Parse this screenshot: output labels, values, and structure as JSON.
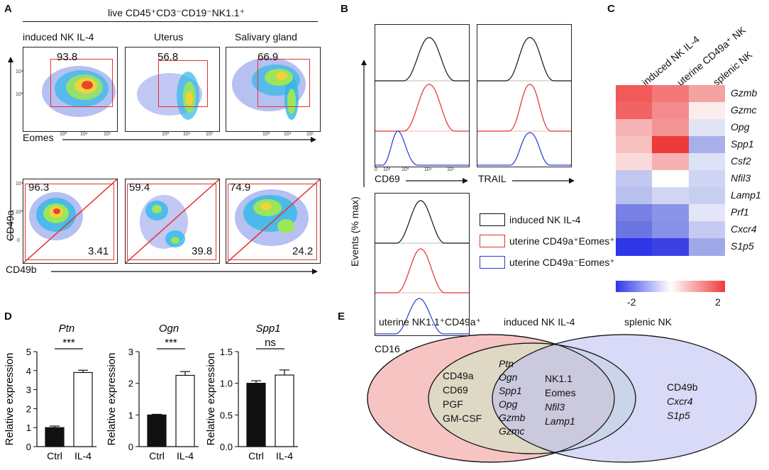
{
  "panels": {
    "A": "A",
    "B": "B",
    "C": "C",
    "D": "D",
    "E": "E"
  },
  "panelA": {
    "header": "live CD45⁺CD3⁻CD19⁻NK1.1⁺",
    "columns": [
      "induced NK IL-4",
      "Uterus",
      "Salivary gland"
    ],
    "top_values": [
      "93.8",
      "56.8",
      "66.9"
    ],
    "bottom_upper_values": [
      "96.3",
      "59.4",
      "74.9"
    ],
    "bottom_lower_values": [
      "3.41",
      "39.8",
      "24.2"
    ],
    "x_label_top": "Eomes",
    "x_label_bottom": "CD49b",
    "y_label": "CD49a",
    "ticks": [
      "10³",
      "10⁴",
      "10⁵",
      "10⁴",
      "10³",
      "0"
    ]
  },
  "panelB": {
    "x_labels": [
      "CD69",
      "TRAIL",
      "CD16"
    ],
    "y_label": "Events (% max)",
    "ticks": [
      "0",
      "10²",
      "10³",
      "10⁴",
      "10⁵"
    ],
    "legend": [
      {
        "label": "induced NK IL-4",
        "color": "#111111"
      },
      {
        "label": "uterine CD49a⁺Eomes⁺",
        "color": "#e03030"
      },
      {
        "label": "uterine CD49a⁻Eomes⁺",
        "color": "#2a3ad0"
      }
    ]
  },
  "panelC": {
    "columns": [
      "induced NK IL-4",
      "uterine CD49a⁺ NK",
      "splenic NK"
    ],
    "genes": [
      "Gzmb",
      "Gzmc",
      "Opg",
      "Spp1",
      "Csf2",
      "Nfil3",
      "Lamp1",
      "Prf1",
      "Cxcr4",
      "S1p5"
    ],
    "scale_min": "-2",
    "scale_max": "2",
    "colors": [
      [
        "#f25a5a",
        "#f47878",
        "#f4a2a2"
      ],
      [
        "#f26464",
        "#f38c8c",
        "#fcecec"
      ],
      [
        "#f7b4b4",
        "#f49494",
        "#e2e4f6"
      ],
      [
        "#f8c0c0",
        "#ef3a3a",
        "#a8b0ec"
      ],
      [
        "#fbdada",
        "#f6b2b2",
        "#dee2f6"
      ],
      [
        "#c2c8f0",
        "#ffffff",
        "#d0d4f4"
      ],
      [
        "#b8c0ee",
        "#d2d6f4",
        "#c8cef2"
      ],
      [
        "#7880e6",
        "#8c94e8",
        "#e4e6f8"
      ],
      [
        "#6c74e2",
        "#8890e8",
        "#c4caf2"
      ],
      [
        "#2e36e8",
        "#3a42e6",
        "#a0a8ea"
      ]
    ]
  },
  "chart_data": [
    {
      "type": "bar",
      "title": "Ptn",
      "categories": [
        "Ctrl",
        "IL-4"
      ],
      "values": [
        1.0,
        3.9
      ],
      "errors": [
        0.08,
        0.12
      ],
      "ylabel": "Relative expression",
      "ylim": [
        0,
        5
      ],
      "yticks": [
        "0",
        "1",
        "2",
        "3",
        "4",
        "5"
      ],
      "significance": "***",
      "bar_colors": [
        "#111111",
        "#ffffff"
      ]
    },
    {
      "type": "bar",
      "title": "Ogn",
      "categories": [
        "Ctrl",
        "IL-4"
      ],
      "values": [
        1.0,
        2.25
      ],
      "errors": [
        0.02,
        0.12
      ],
      "ylabel": "Relative expression",
      "ylim": [
        0,
        3
      ],
      "yticks": [
        "0",
        "1",
        "2",
        "3"
      ],
      "significance": "***",
      "bar_colors": [
        "#111111",
        "#ffffff"
      ]
    },
    {
      "type": "bar",
      "title": "Spp1",
      "categories": [
        "Ctrl",
        "IL-4"
      ],
      "values": [
        1.0,
        1.13
      ],
      "errors": [
        0.04,
        0.08
      ],
      "ylabel": "Relative expression",
      "ylim": [
        0,
        1.5
      ],
      "yticks": [
        "0.0",
        "0.5",
        "1.0",
        "1.5"
      ],
      "significance": "ns",
      "bar_colors": [
        "#111111",
        "#ffffff"
      ]
    }
  ],
  "panelE": {
    "labels": [
      "uterine NK1.1⁺CD49a⁺",
      "induced NK IL-4",
      "splenic NK"
    ],
    "uterine_only": [
      "CD49a",
      "CD69",
      "PGF",
      "GM-CSF"
    ],
    "uterine_induced": [
      "Ptn",
      "Ogn",
      "Spp1",
      "Opg",
      "Gzmb",
      "Gzmc"
    ],
    "all_three": [
      "NK1.1",
      "Eomes",
      "Nfil3",
      "Lamp1"
    ],
    "splenic_only": [
      "CD49b",
      "Cxcr4",
      "S1p5"
    ],
    "colors": {
      "uterine": "#f7c4c4",
      "induced": "#cdeac6",
      "splenic": "#b9bdf2"
    }
  }
}
